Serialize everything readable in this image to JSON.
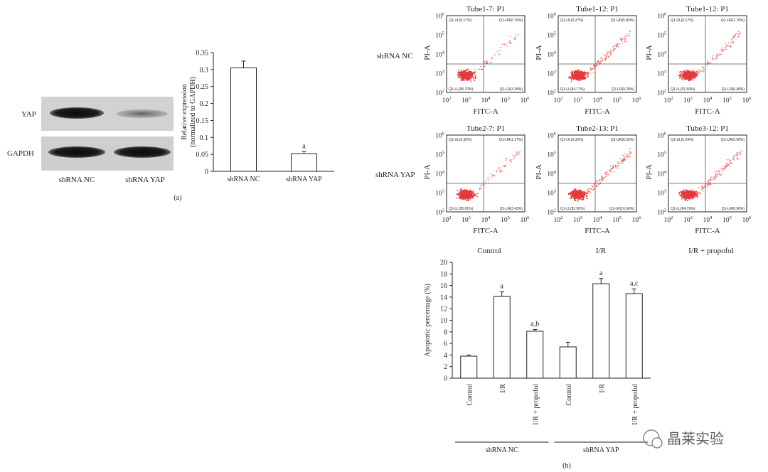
{
  "panel_a": {
    "label": "(a)",
    "blot": {
      "rows": [
        {
          "name": "YAP"
        },
        {
          "name": "GAPDH"
        }
      ],
      "lanes": [
        "shRNA NC",
        "shRNA YAP"
      ]
    }
  },
  "panel_b": {
    "label": "(b)",
    "flow_rows": [
      "shRNA NC",
      "shRNA YAP"
    ],
    "flow_columns": [
      "Control",
      "I/R",
      "I/R + propofol"
    ],
    "flow_axis": {
      "x_label": "FITC-A",
      "y_label": "PI-A",
      "exponents": [
        "2",
        "3",
        "4",
        "5",
        "6"
      ],
      "base": "10"
    },
    "flow_plots": [
      {
        "title": "Tube1-7: P1",
        "ul": "Q1-UL(0.17%)",
        "ur": "Q1-UR(0.76%)",
        "ll": "Q1-LL(95.70%)",
        "lr": "Q1-LR(3.38%)",
        "spread": 0.2
      },
      {
        "title": "Tube1-12: P1",
        "ul": "Q1-UL(0.27%)",
        "ur": "Q1-UR(5.83%)",
        "ll": "Q1-LL(84.77%)",
        "lr": "Q1-LR(9.20%)",
        "spread": 1
      },
      {
        "title": "Tube1-12: P1",
        "ul": "Q1-UL(0.17%)",
        "ur": "Q1-UR(1.76%)",
        "ll": "Q1-LL(91.59%)",
        "lr": "Q1-LR(6.48%)",
        "spread": 0.6
      },
      {
        "title": "Tube2-7: P1",
        "ul": "Q1-UL(0.30%)",
        "ur": "Q1-UR(1.27%)",
        "ll": "Q1-LL(95.01%)",
        "lr": "Q1-LR(3.42%)",
        "spread": 0.3
      },
      {
        "title": "Tube2-13: P1",
        "ul": "Q1-UL(0.32%)",
        "ur": "Q1-UR(6.52%)",
        "ll": "Q1-LL(82.56%)",
        "lr": "Q1-LR(10.60%)",
        "spread": 1.1
      },
      {
        "title": "Tube3-12: P1",
        "ul": "Q1-UL(0.29%)",
        "ur": "Q1-UR(5.96%)",
        "ll": "Q1-LL(84.79%)",
        "lr": "Q1-LR(8.96%)",
        "spread": 1
      }
    ]
  },
  "watermark": "晶莱实验",
  "colors": {
    "dots": "#e23a3a",
    "axis": "#222222"
  },
  "chart_data": [
    {
      "type": "bar",
      "categories": [
        "shRNA NC",
        "shRNA YAP"
      ],
      "values": [
        0.305,
        0.052
      ],
      "errors": [
        0.02,
        0.006
      ],
      "annotations": [
        "",
        "a"
      ],
      "ylabel": "Relative expression (normalized to GAPDH)",
      "ylim": [
        0,
        0.35
      ],
      "yticks": [
        "0",
        "0.05",
        "0.1",
        "0.15",
        "0.2",
        "0.25",
        "0.3",
        "0.35"
      ]
    },
    {
      "type": "bar",
      "categories": [
        "Control",
        "I/R",
        "I/R + propofol",
        "Control",
        "I/R",
        "I/R + propofol"
      ],
      "groups": [
        "shRNA NC",
        "shRNA YAP"
      ],
      "values": [
        3.8,
        14.1,
        8.1,
        5.4,
        16.3,
        14.6
      ],
      "errors": [
        0.2,
        0.8,
        0.3,
        0.8,
        0.9,
        0.8
      ],
      "annotations": [
        "",
        "a",
        "a,b",
        "",
        "a",
        "a,c"
      ],
      "ylabel": "Apoptotic percentage (%)",
      "ylim": [
        0,
        20
      ],
      "yticks": [
        "0",
        "2",
        "4",
        "6",
        "8",
        "10",
        "12",
        "14",
        "16",
        "18",
        "20"
      ]
    }
  ]
}
